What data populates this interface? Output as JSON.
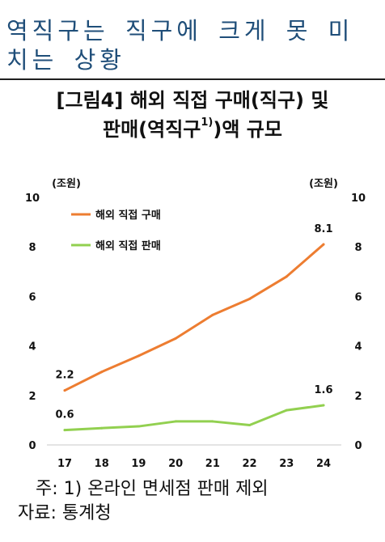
{
  "headline": "역직구는 직구에 크게 못 미치는 상황",
  "figure_title": {
    "line1": "[그림4] 해외 직접 구매(직구) 및",
    "line2_pre": "판매(역직구",
    "line2_sup": "1)",
    "line2_post": ")액 규모"
  },
  "notes": {
    "footnote": "주: 1) 온라인 면세점 판매 제외",
    "source": "자료: 통계청"
  },
  "colors": {
    "purchase": "#ed7d31",
    "sales": "#92d050",
    "text": "#111111",
    "headline": "#1f4e79"
  },
  "chart_data": {
    "type": "line",
    "categories": [
      "17",
      "18",
      "19",
      "20",
      "21",
      "22",
      "23",
      "24"
    ],
    "series": [
      {
        "name": "해외 직접 구매",
        "values": [
          2.2,
          2.95,
          3.6,
          4.3,
          5.25,
          5.9,
          6.8,
          8.1
        ]
      },
      {
        "name": "해외 직접 판매",
        "values": [
          0.6,
          0.68,
          0.75,
          0.95,
          0.95,
          0.8,
          1.4,
          1.6
        ]
      }
    ],
    "data_labels": [
      {
        "series": 0,
        "index": 0,
        "text": "2.2"
      },
      {
        "series": 0,
        "index": 7,
        "text": "8.1"
      },
      {
        "series": 1,
        "index": 0,
        "text": "0.6"
      },
      {
        "series": 1,
        "index": 7,
        "text": "1.6"
      }
    ],
    "yticks": [
      "0",
      "2",
      "4",
      "6",
      "8",
      "10"
    ],
    "ylim": [
      0,
      10
    ],
    "y_unit_left": "(조원)",
    "y_unit_right": "(조원)",
    "grid": false,
    "legend_position": "top-left"
  }
}
